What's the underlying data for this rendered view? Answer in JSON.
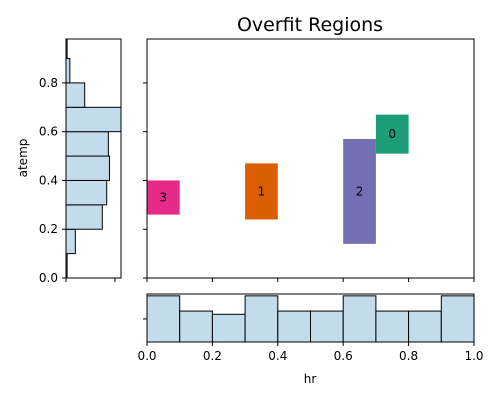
{
  "chart_data": {
    "type": "bar",
    "title": "Overfit Regions",
    "xlabel": "hr",
    "ylabel": "atemp",
    "xlim": [
      0,
      1
    ],
    "ylim": [
      0,
      0.98
    ],
    "x_ticks": [
      0.0,
      0.2,
      0.4,
      0.6,
      0.8,
      1.0
    ],
    "x_tick_labels": [
      "0.0",
      "0.2",
      "0.4",
      "0.6",
      "0.8",
      "1.0"
    ],
    "y_ticks": [
      0.0,
      0.2,
      0.4,
      0.6,
      0.8
    ],
    "y_tick_labels": [
      "0.0",
      "0.2",
      "0.4",
      "0.6",
      "0.8"
    ],
    "grid": false,
    "regions": [
      {
        "label": "0",
        "x0": 0.7,
        "x1": 0.8,
        "y0": 0.51,
        "y1": 0.67,
        "color": "#1b9e77"
      },
      {
        "label": "1",
        "x0": 0.3,
        "x1": 0.4,
        "y0": 0.24,
        "y1": 0.47,
        "color": "#d95f02"
      },
      {
        "label": "2",
        "x0": 0.6,
        "x1": 0.7,
        "y0": 0.14,
        "y1": 0.57,
        "color": "#7570b3"
      },
      {
        "label": "3",
        "x0": 0.0,
        "x1": 0.1,
        "y0": 0.26,
        "y1": 0.4,
        "color": "#e7298a"
      }
    ],
    "x_histogram": {
      "bin_edges": [
        0.0,
        0.1,
        0.2,
        0.3,
        0.4,
        0.5,
        0.6,
        0.7,
        0.8,
        0.9,
        1.0
      ],
      "counts": [
        1.0,
        0.67,
        0.6,
        1.0,
        0.67,
        0.67,
        1.0,
        0.67,
        0.67,
        1.0
      ],
      "ymax": 1.04,
      "y_ticks": [
        0.5
      ]
    },
    "y_histogram": {
      "bin_edges": [
        0.0,
        0.1,
        0.2,
        0.3,
        0.4,
        0.5,
        0.6,
        0.7,
        0.8,
        0.9,
        0.98
      ],
      "counts": [
        0.02,
        0.17,
        0.66,
        0.74,
        0.79,
        0.77,
        1.0,
        0.34,
        0.07,
        0.02
      ],
      "xmax": 1.0,
      "x_ticks": [
        0.0,
        0.89
      ]
    },
    "fill_color": "#c3dcec",
    "edge_color": "#000000"
  }
}
